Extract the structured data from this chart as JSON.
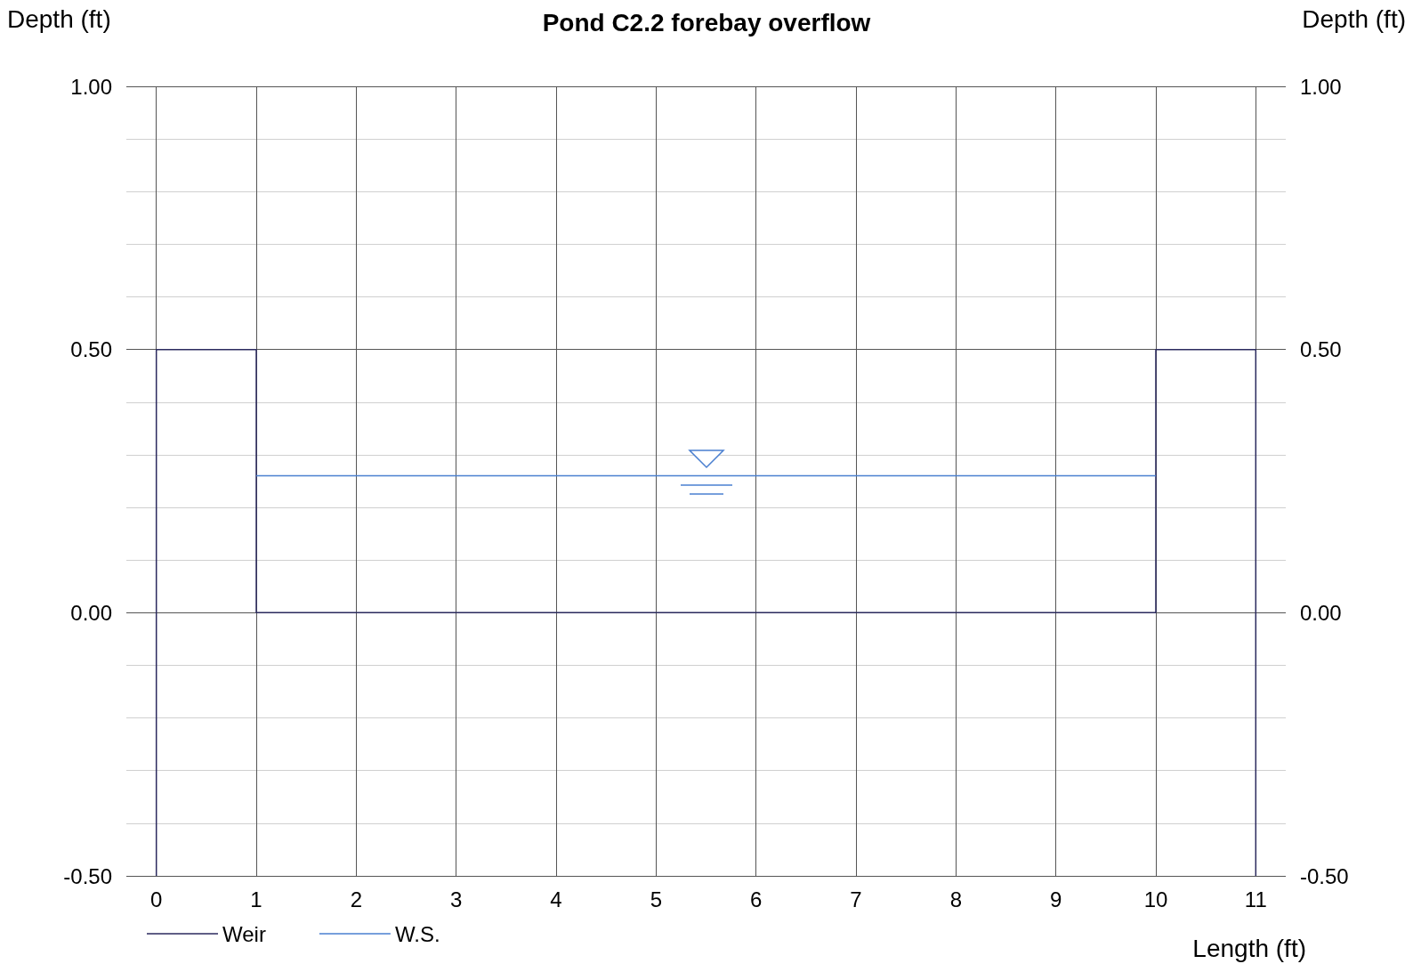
{
  "chart_data": {
    "type": "line",
    "title": "Pond C2.2 forebay overflow",
    "xlabel": "Length (ft)",
    "ylabel": "Depth (ft)",
    "y2label": "Depth (ft)",
    "series": [
      {
        "name": "Weir",
        "color": "#2b2a5e",
        "x": [
          0,
          0,
          1,
          1,
          10,
          10,
          11,
          11
        ],
        "values": [
          -0.5,
          0.5,
          0.5,
          0,
          0,
          0.5,
          0.5,
          -0.5
        ]
      },
      {
        "name": "W.S.",
        "color": "#4a7fd0",
        "x": [
          1,
          10
        ],
        "values": [
          0.26,
          0.26
        ]
      }
    ],
    "xlim": [
      -0.3,
      11.3
    ],
    "xticks": [
      0,
      1,
      2,
      3,
      4,
      5,
      6,
      7,
      8,
      9,
      10,
      11
    ],
    "ylim": [
      -0.5,
      1.0
    ],
    "yticks": [
      {
        "value": -0.5,
        "label": "-0.50"
      },
      {
        "value": -0.4,
        "label": null
      },
      {
        "value": -0.3,
        "label": null
      },
      {
        "value": -0.2,
        "label": null
      },
      {
        "value": -0.1,
        "label": null
      },
      {
        "value": 0,
        "label": "0.00"
      },
      {
        "value": 0.1,
        "label": null
      },
      {
        "value": 0.2,
        "label": null
      },
      {
        "value": 0.3,
        "label": null
      },
      {
        "value": 0.4,
        "label": null
      },
      {
        "value": 0.5,
        "label": "0.50"
      },
      {
        "value": 0.6,
        "label": null
      },
      {
        "value": 0.7,
        "label": null
      },
      {
        "value": 0.8,
        "label": null
      },
      {
        "value": 0.9,
        "label": null
      },
      {
        "value": 1.0,
        "label": "1.00"
      }
    ],
    "y2lim": [
      -0.5,
      1.0
    ],
    "y2ticks": [
      {
        "value": -0.5,
        "label": "-0.50"
      },
      {
        "value": 0,
        "label": "0.00"
      },
      {
        "value": 0.5,
        "label": "0.50"
      },
      {
        "value": 1.0,
        "label": "1.00"
      }
    ],
    "grid": true,
    "legend": "bottom left",
    "marker": "none",
    "line_style": "solid"
  }
}
